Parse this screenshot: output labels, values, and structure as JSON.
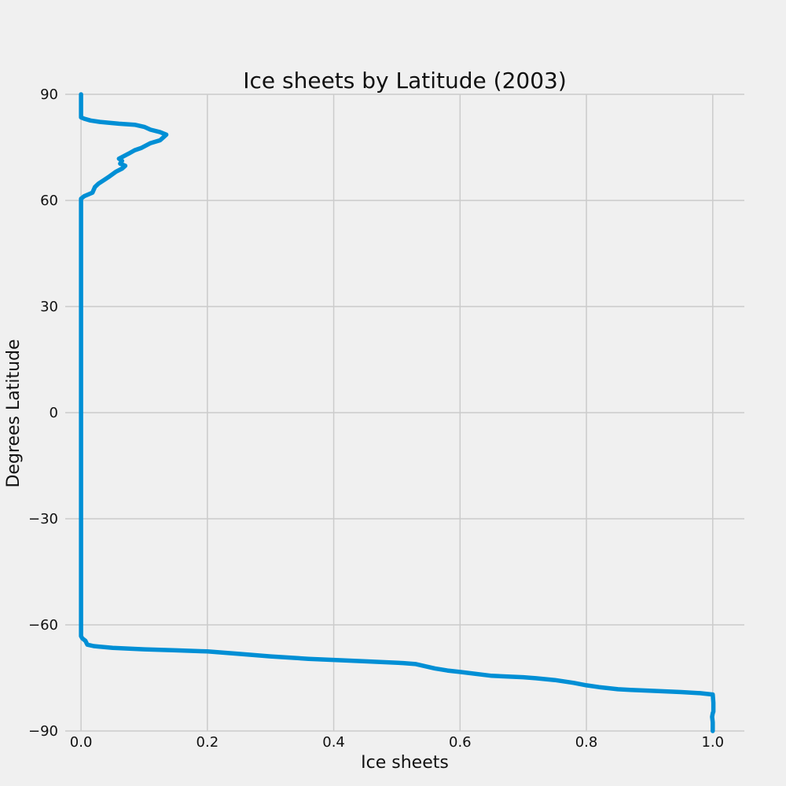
{
  "chart_data": {
    "type": "line",
    "title": "Ice sheets by Latitude (2003)",
    "xlabel": "Ice sheets",
    "ylabel": "Degrees Latitude",
    "xlim": [
      -0.025,
      1.05
    ],
    "ylim": [
      -90,
      90
    ],
    "x_ticks": [
      0.0,
      0.2,
      0.4,
      0.6,
      0.8,
      1.0
    ],
    "x_tick_labels": [
      "0.0",
      "0.2",
      "0.4",
      "0.6",
      "0.8",
      "1.0"
    ],
    "y_ticks": [
      -90,
      -60,
      -30,
      0,
      30,
      60,
      90
    ],
    "y_tick_labels": [
      "−90",
      "−60",
      "−30",
      "0",
      "30",
      "60",
      "90"
    ],
    "grid": true,
    "line_color": "#008fd5",
    "background_color": "#f0f0f0",
    "series": [
      {
        "points": [
          [
            1.0,
            -90
          ],
          [
            1.0,
            -87.5
          ],
          [
            0.999,
            -86
          ],
          [
            1.0,
            -85
          ],
          [
            1.001,
            -84.5
          ],
          [
            1.001,
            -82
          ],
          [
            1.0,
            -79.7
          ],
          [
            0.98,
            -79.3
          ],
          [
            0.95,
            -79.0
          ],
          [
            0.9,
            -78.6
          ],
          [
            0.87,
            -78.4
          ],
          [
            0.85,
            -78.2
          ],
          [
            0.82,
            -77.6
          ],
          [
            0.8,
            -77.1
          ],
          [
            0.78,
            -76.4
          ],
          [
            0.75,
            -75.6
          ],
          [
            0.72,
            -75.1
          ],
          [
            0.7,
            -74.8
          ],
          [
            0.65,
            -74.4
          ],
          [
            0.6,
            -73.3
          ],
          [
            0.58,
            -72.9
          ],
          [
            0.56,
            -72.3
          ],
          [
            0.53,
            -71.1
          ],
          [
            0.51,
            -70.8
          ],
          [
            0.45,
            -70.3
          ],
          [
            0.4,
            -69.9
          ],
          [
            0.36,
            -69.6
          ],
          [
            0.3,
            -68.9
          ],
          [
            0.25,
            -68.2
          ],
          [
            0.2,
            -67.5
          ],
          [
            0.15,
            -67.2
          ],
          [
            0.1,
            -66.9
          ],
          [
            0.05,
            -66.5
          ],
          [
            0.02,
            -66.0
          ],
          [
            0.01,
            -65.6
          ],
          [
            0.007,
            -64.5
          ],
          [
            0.002,
            -63.8
          ],
          [
            0.0,
            -63.2
          ],
          [
            0.0,
            -30
          ],
          [
            0.0,
            0
          ],
          [
            0.0,
            30
          ],
          [
            0.0,
            60.5
          ],
          [
            0.005,
            61.2
          ],
          [
            0.018,
            62.2
          ],
          [
            0.022,
            63.8
          ],
          [
            0.028,
            64.8
          ],
          [
            0.035,
            65.6
          ],
          [
            0.045,
            66.8
          ],
          [
            0.055,
            68.1
          ],
          [
            0.065,
            69.0
          ],
          [
            0.07,
            69.8
          ],
          [
            0.062,
            70.4
          ],
          [
            0.065,
            71.2
          ],
          [
            0.06,
            71.8
          ],
          [
            0.075,
            73.2
          ],
          [
            0.085,
            74.2
          ],
          [
            0.095,
            74.8
          ],
          [
            0.11,
            76.2
          ],
          [
            0.125,
            77.0
          ],
          [
            0.13,
            77.8
          ],
          [
            0.135,
            78.6
          ],
          [
            0.125,
            79.3
          ],
          [
            0.11,
            80.0
          ],
          [
            0.1,
            80.8
          ],
          [
            0.085,
            81.4
          ],
          [
            0.06,
            81.7
          ],
          [
            0.03,
            82.2
          ],
          [
            0.015,
            82.6
          ],
          [
            0.005,
            83.1
          ],
          [
            0.0,
            83.5
          ],
          [
            0.0,
            90
          ]
        ]
      }
    ]
  }
}
